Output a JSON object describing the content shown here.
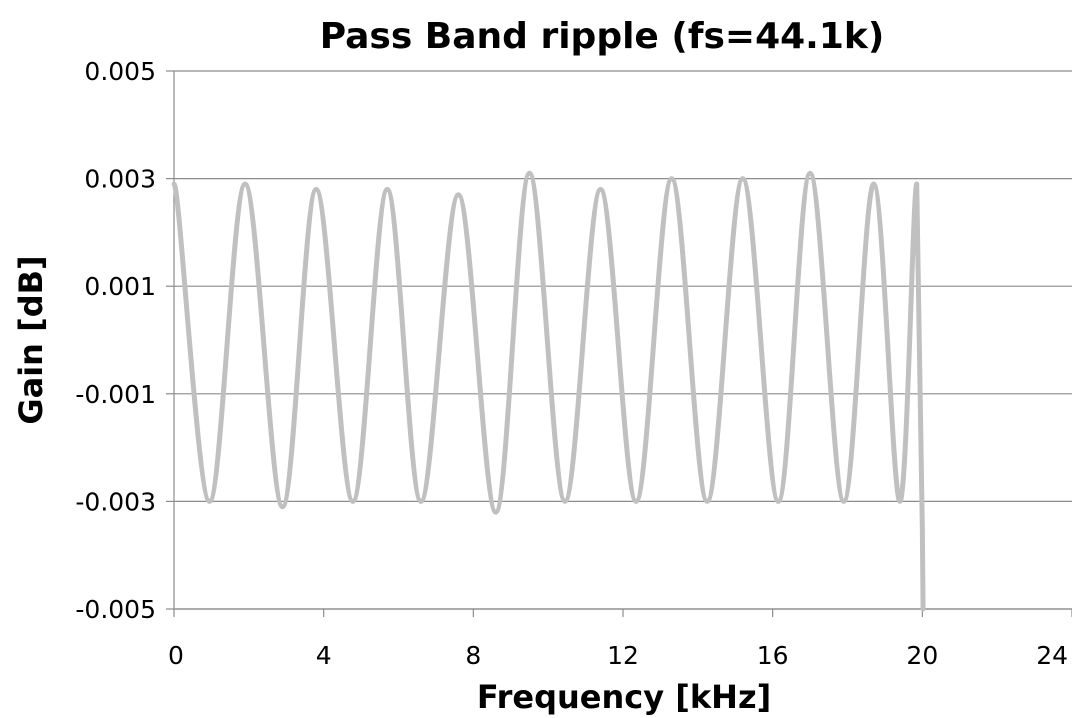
{
  "chart_data": {
    "type": "line",
    "title": "Pass Band ripple (fs=44.1k)",
    "xlabel": "Frequency [kHz]",
    "ylabel": "Gain [dB]",
    "xlim": [
      0,
      24
    ],
    "ylim": [
      -0.005,
      0.005
    ],
    "x_ticks": [
      0,
      4,
      8,
      12,
      16,
      20,
      24
    ],
    "x_tick_labels": [
      "0",
      "4",
      "8",
      "12",
      "16",
      "20",
      "24"
    ],
    "y_ticks": [
      0.005,
      0.003,
      0.001,
      -0.001,
      -0.003,
      -0.005
    ],
    "y_tick_labels": [
      "0.005",
      "0.003",
      "0.001",
      "-0.001",
      "-0.003",
      "-0.005"
    ],
    "grid": "horizontal",
    "legend": "none",
    "series": [
      {
        "color": "#c0c0c0",
        "x": [
          0,
          0.95,
          1.9,
          2.9,
          3.8,
          4.78,
          5.7,
          6.6,
          7.6,
          8.6,
          9.5,
          10.45,
          11.4,
          12.35,
          13.3,
          14.25,
          15.2,
          16.15,
          17.0,
          17.9,
          18.7,
          19.4,
          19.85,
          20.0,
          20.02
        ],
        "y": [
          0.0029,
          -0.003,
          0.0029,
          -0.0031,
          0.0028,
          -0.003,
          0.0028,
          -0.003,
          0.0027,
          -0.0032,
          0.0031,
          -0.003,
          0.0028,
          -0.003,
          0.003,
          -0.003,
          0.003,
          -0.003,
          0.0031,
          -0.003,
          0.0029,
          -0.003,
          0.0029,
          -0.0035,
          -0.005
        ]
      }
    ]
  }
}
